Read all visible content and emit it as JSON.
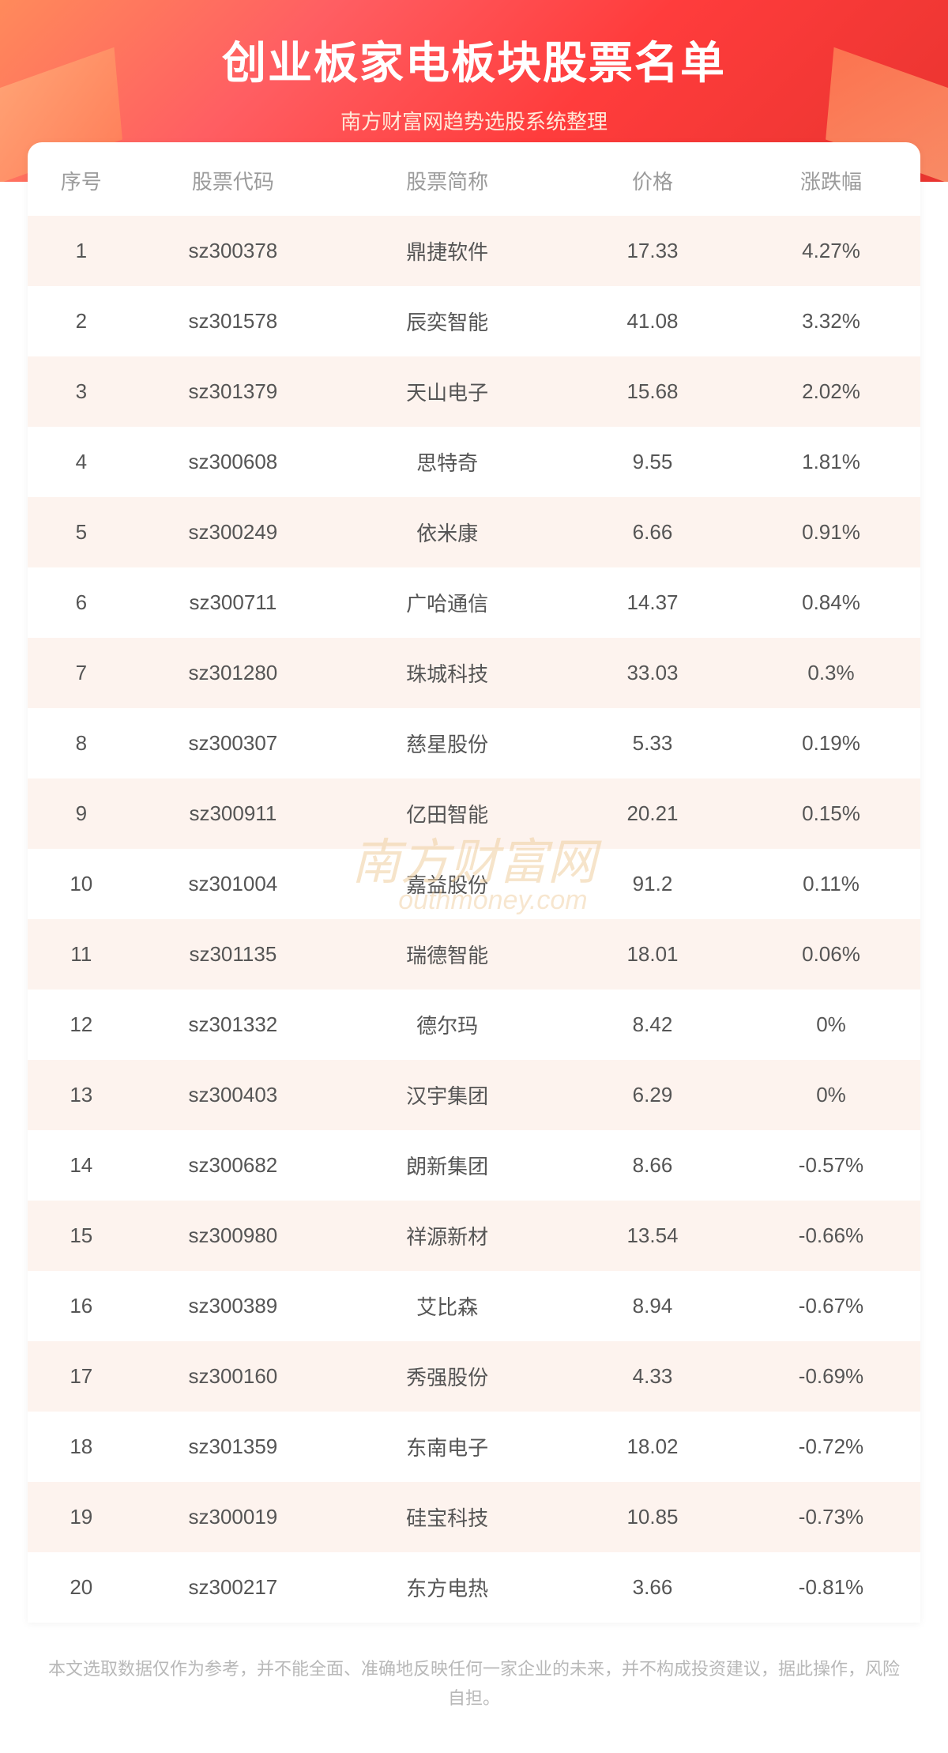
{
  "header": {
    "title": "创业板家电板块股票名单",
    "subtitle": "南方财富网趋势选股系统整理"
  },
  "table": {
    "columns": [
      "序号",
      "股票代码",
      "股票简称",
      "价格",
      "涨跌幅"
    ],
    "rows": [
      [
        "1",
        "sz300378",
        "鼎捷软件",
        "17.33",
        "4.27%"
      ],
      [
        "2",
        "sz301578",
        "辰奕智能",
        "41.08",
        "3.32%"
      ],
      [
        "3",
        "sz301379",
        "天山电子",
        "15.68",
        "2.02%"
      ],
      [
        "4",
        "sz300608",
        "思特奇",
        "9.55",
        "1.81%"
      ],
      [
        "5",
        "sz300249",
        "依米康",
        "6.66",
        "0.91%"
      ],
      [
        "6",
        "sz300711",
        "广哈通信",
        "14.37",
        "0.84%"
      ],
      [
        "7",
        "sz301280",
        "珠城科技",
        "33.03",
        "0.3%"
      ],
      [
        "8",
        "sz300307",
        "慈星股份",
        "5.33",
        "0.19%"
      ],
      [
        "9",
        "sz300911",
        "亿田智能",
        "20.21",
        "0.15%"
      ],
      [
        "10",
        "sz301004",
        "嘉益股份",
        "91.2",
        "0.11%"
      ],
      [
        "11",
        "sz301135",
        "瑞德智能",
        "18.01",
        "0.06%"
      ],
      [
        "12",
        "sz301332",
        "德尔玛",
        "8.42",
        "0%"
      ],
      [
        "13",
        "sz300403",
        "汉宇集团",
        "6.29",
        "0%"
      ],
      [
        "14",
        "sz300682",
        "朗新集团",
        "8.66",
        "-0.57%"
      ],
      [
        "15",
        "sz300980",
        "祥源新材",
        "13.54",
        "-0.66%"
      ],
      [
        "16",
        "sz300389",
        "艾比森",
        "8.94",
        "-0.67%"
      ],
      [
        "17",
        "sz300160",
        "秀强股份",
        "4.33",
        "-0.69%"
      ],
      [
        "18",
        "sz301359",
        "东南电子",
        "18.02",
        "-0.72%"
      ],
      [
        "19",
        "sz300019",
        "硅宝科技",
        "10.85",
        "-0.73%"
      ],
      [
        "20",
        "sz300217",
        "东方电热",
        "3.66",
        "-0.81%"
      ]
    ],
    "header_color": "#9b9b9b",
    "cell_color": "#555555",
    "row_odd_bg": "#fdf3ee",
    "row_even_bg": "#ffffff",
    "font_size": 26
  },
  "watermark": {
    "main": "南方财富网",
    "sub": "outhmoney.com",
    "color": "#f0cfa0"
  },
  "disclaimer": "本文选取数据仅作为参考，并不能全面、准确地反映任何一家企业的未来，并不构成投资建议，据此操作，风险自担。",
  "colors": {
    "header_gradient_start": "#ff8a5b",
    "header_gradient_end": "#e8342f",
    "title_color": "#ffffff",
    "subtitle_color": "#ffe8d8",
    "disclaimer_color": "#b8b8b8",
    "background": "#ffffff"
  }
}
